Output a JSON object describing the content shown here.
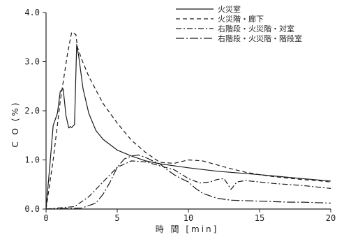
{
  "chart_data": {
    "type": "line",
    "xlabel": "時 間 [min]",
    "ylabel": "C O (%)",
    "xlim": [
      0,
      20
    ],
    "ylim": [
      0,
      4.0
    ],
    "x_ticks": [
      "0",
      "5",
      "10",
      "15",
      "20"
    ],
    "y_ticks": [
      "0.0",
      "1.0",
      "2.0",
      "3.0",
      "4.0"
    ],
    "grid": false,
    "legend_position": "top-right",
    "series": [
      {
        "name": "火災室",
        "style": "solid",
        "x": [
          0,
          0.3,
          0.5,
          0.8,
          1.0,
          1.2,
          1.4,
          1.6,
          1.7,
          1.8,
          2.0,
          2.15,
          2.3,
          2.6,
          3.0,
          3.5,
          4.0,
          5.0,
          6.0,
          7.0,
          8.0,
          10.0,
          12.0,
          15.0,
          18.0,
          20.0
        ],
        "y": [
          0.0,
          1.0,
          1.7,
          1.95,
          2.4,
          2.45,
          1.9,
          1.65,
          1.68,
          1.66,
          1.72,
          3.35,
          3.1,
          2.45,
          1.95,
          1.6,
          1.42,
          1.2,
          1.08,
          0.98,
          0.92,
          0.84,
          0.77,
          0.7,
          0.62,
          0.57
        ]
      },
      {
        "name": "火災階・廊下",
        "style": "dashed",
        "x": [
          0,
          0.5,
          1.0,
          1.5,
          1.8,
          2.1,
          2.2,
          2.5,
          3.0,
          4.0,
          5.0,
          6.0,
          7.0,
          8.0,
          9.0,
          10.0,
          11.0,
          12.0,
          13.0,
          14.0,
          15.0,
          16.0,
          17.0,
          18.0,
          19.0,
          20.0
        ],
        "y": [
          0.0,
          1.0,
          2.2,
          3.15,
          3.6,
          3.55,
          3.3,
          3.05,
          2.7,
          2.15,
          1.75,
          1.4,
          1.15,
          0.95,
          0.93,
          1.0,
          0.98,
          0.9,
          0.82,
          0.75,
          0.7,
          0.66,
          0.63,
          0.6,
          0.58,
          0.55
        ]
      },
      {
        "name": "右階段・火災階・対室",
        "style": "dash-dot",
        "x": [
          0,
          2.0,
          3.0,
          4.0,
          5.0,
          6.0,
          7.0,
          8.0,
          9.0,
          10.0,
          10.8,
          11.5,
          12.0,
          12.5,
          13.0,
          13.4,
          14.0,
          15.0,
          16.0,
          17.0,
          18.0,
          19.0,
          20.0
        ],
        "y": [
          0.0,
          0.05,
          0.25,
          0.55,
          0.85,
          0.98,
          0.96,
          0.88,
          0.8,
          0.62,
          0.53,
          0.55,
          0.6,
          0.62,
          0.4,
          0.55,
          0.58,
          0.55,
          0.52,
          0.5,
          0.48,
          0.45,
          0.42
        ]
      },
      {
        "name": "右階段・火災階・階段室",
        "style": "long-dash-dot",
        "x": [
          0,
          2.5,
          3.5,
          4.0,
          4.5,
          5.0,
          5.5,
          6.0,
          6.5,
          7.0,
          7.5,
          8.0,
          8.5,
          9.0,
          9.5,
          10.0,
          10.5,
          11.0,
          12.0,
          13.0,
          14.0,
          15.0,
          16.0,
          17.0,
          18.0,
          19.0,
          20.0
        ],
        "y": [
          0.0,
          0.02,
          0.12,
          0.3,
          0.55,
          0.85,
          1.02,
          1.08,
          1.1,
          1.05,
          0.98,
          0.92,
          0.8,
          0.7,
          0.62,
          0.55,
          0.42,
          0.32,
          0.22,
          0.18,
          0.17,
          0.16,
          0.15,
          0.14,
          0.14,
          0.13,
          0.12
        ]
      }
    ]
  }
}
